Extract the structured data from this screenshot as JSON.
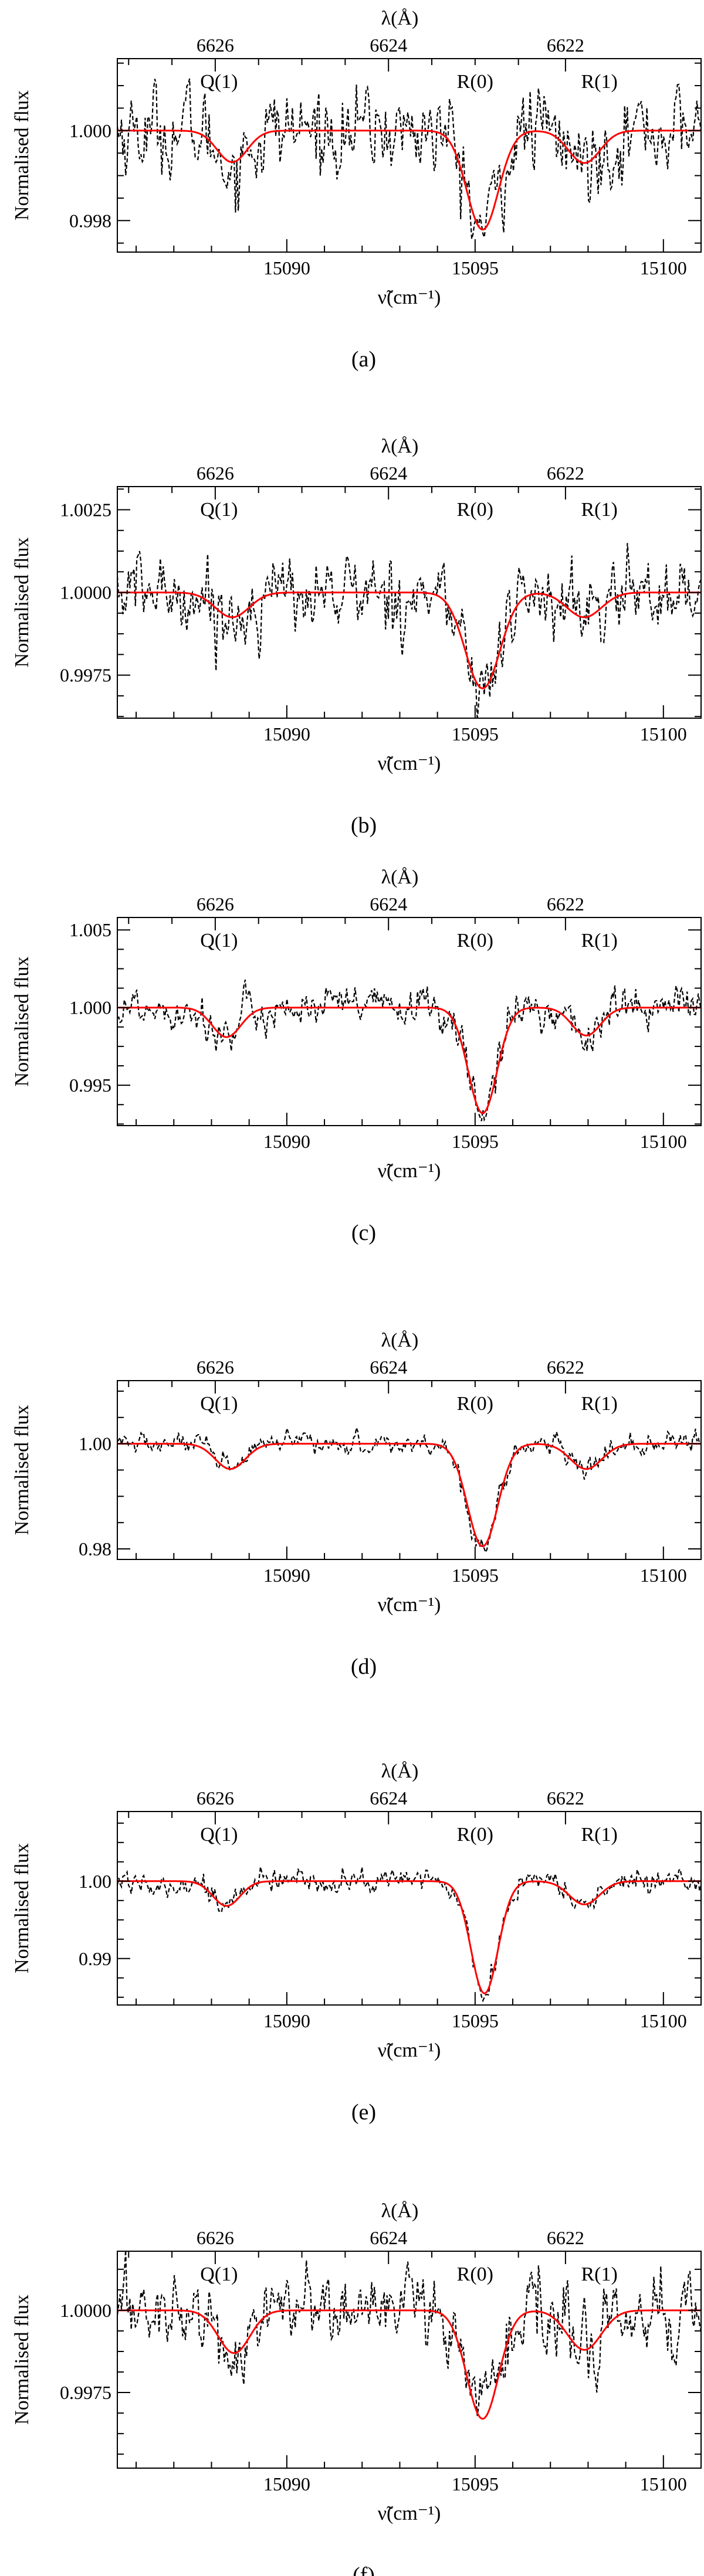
{
  "chart_data": [
    {
      "panel_label": "(a)",
      "type": "line",
      "xlabel": "ν̃(cm⁻¹)",
      "ylabel": "Normalised flux",
      "top_axis_label": "λ(Å)",
      "xlim": [
        15085.5,
        15101.0
      ],
      "ylim": [
        0.9973,
        1.0016
      ],
      "x_ticks": [
        "15090",
        "15095",
        "15100"
      ],
      "y_ticks": [
        "0.998",
        "1.000"
      ],
      "top_ticks": [
        "6626",
        "6624",
        "6622"
      ],
      "annotations": [
        "Q(1)",
        "R(0)",
        "R(1)"
      ],
      "model": {
        "baseline": 1.0,
        "lines": [
          {
            "center": 15088.55,
            "depth": 0.0007,
            "width": 0.4
          },
          {
            "center": 15095.2,
            "depth": 0.0022,
            "width": 0.42
          },
          {
            "center": 15097.9,
            "depth": 0.00072,
            "width": 0.42
          }
        ]
      },
      "observed_noise": 0.00052
    },
    {
      "panel_label": "(b)",
      "type": "line",
      "xlabel": "ν̃(cm⁻¹)",
      "ylabel": "Normalised flux",
      "top_axis_label": "λ(Å)",
      "xlim": [
        15085.5,
        15101.0
      ],
      "ylim": [
        0.9962,
        1.0032
      ],
      "x_ticks": [
        "15090",
        "15095",
        "15100"
      ],
      "y_ticks": [
        "0.9975",
        "1.0000",
        "1.0025"
      ],
      "top_ticks": [
        "6626",
        "6624",
        "6622"
      ],
      "annotations": [
        "Q(1)",
        "R(0)",
        "R(1)"
      ],
      "model": {
        "baseline": 1.0,
        "lines": [
          {
            "center": 15088.55,
            "depth": 0.00075,
            "width": 0.45
          },
          {
            "center": 15095.2,
            "depth": 0.0029,
            "width": 0.46
          },
          {
            "center": 15097.9,
            "depth": 0.00075,
            "width": 0.46
          }
        ]
      },
      "observed_noise": 0.00062
    },
    {
      "panel_label": "(c)",
      "type": "line",
      "xlabel": "ν̃(cm⁻¹)",
      "ylabel": "Normalised flux",
      "top_axis_label": "λ(Å)",
      "xlim": [
        15085.5,
        15101.0
      ],
      "ylim": [
        0.9924,
        1.0058
      ],
      "x_ticks": [
        "15090",
        "15095",
        "15100"
      ],
      "y_ticks": [
        "0.995",
        "1.000",
        "1.005"
      ],
      "top_ticks": [
        "6626",
        "6624",
        "6622"
      ],
      "annotations": [
        "Q(1)",
        "R(0)",
        "R(1)"
      ],
      "model": {
        "baseline": 1.0,
        "lines": [
          {
            "center": 15088.4,
            "depth": 0.0019,
            "width": 0.38
          },
          {
            "center": 15095.2,
            "depth": 0.0068,
            "width": 0.38
          },
          {
            "center": 15097.95,
            "depth": 0.0018,
            "width": 0.38
          }
        ]
      },
      "observed_noise": 0.00075
    },
    {
      "panel_label": "(d)",
      "type": "line",
      "xlabel": "ν̃(cm⁻¹)",
      "ylabel": "Normalised flux",
      "top_axis_label": "λ(Å)",
      "xlim": [
        15085.5,
        15101.0
      ],
      "ylim": [
        0.978,
        1.012
      ],
      "x_ticks": [
        "15090",
        "15095",
        "15100"
      ],
      "y_ticks": [
        "0.98",
        "1.00"
      ],
      "top_ticks": [
        "6626",
        "6624",
        "6622"
      ],
      "annotations": [
        "Q(1)",
        "R(0)",
        "R(1)"
      ],
      "model": {
        "baseline": 1.0,
        "lines": [
          {
            "center": 15088.5,
            "depth": 0.0048,
            "width": 0.4
          },
          {
            "center": 15095.2,
            "depth": 0.0195,
            "width": 0.4
          },
          {
            "center": 15097.95,
            "depth": 0.0048,
            "width": 0.42
          }
        ]
      },
      "observed_noise": 0.0011
    },
    {
      "panel_label": "(e)",
      "type": "line",
      "xlabel": "ν̃(cm⁻¹)",
      "ylabel": "Normalised flux",
      "top_axis_label": "λ(Å)",
      "xlim": [
        15085.5,
        15101.0
      ],
      "ylim": [
        0.984,
        1.009
      ],
      "x_ticks": [
        "15090",
        "15095",
        "15100"
      ],
      "y_ticks": [
        "0.99",
        "1.00"
      ],
      "top_ticks": [
        "6626",
        "6624",
        "6622"
      ],
      "annotations": [
        "Q(1)",
        "R(0)",
        "R(1)"
      ],
      "model": {
        "baseline": 1.0,
        "lines": [
          {
            "center": 15088.4,
            "depth": 0.0032,
            "width": 0.36
          },
          {
            "center": 15095.25,
            "depth": 0.0145,
            "width": 0.36
          },
          {
            "center": 15097.9,
            "depth": 0.003,
            "width": 0.4
          }
        ]
      },
      "observed_noise": 0.00085
    },
    {
      "panel_label": "(f)",
      "type": "line",
      "xlabel": "ν̃(cm⁻¹)",
      "ylabel": "Normalised flux",
      "top_axis_label": "λ(Å)",
      "xlim": [
        15085.5,
        15101.0
      ],
      "ylim": [
        0.9952,
        1.0018
      ],
      "x_ticks": [
        "15090",
        "15095",
        "15100"
      ],
      "y_ticks": [
        "0.9975",
        "1.0000"
      ],
      "top_ticks": [
        "6626",
        "6624",
        "6622"
      ],
      "annotations": [
        "Q(1)",
        "R(0)",
        "R(1)"
      ],
      "model": {
        "baseline": 1.0,
        "lines": [
          {
            "center": 15088.6,
            "depth": 0.0013,
            "width": 0.42
          },
          {
            "center": 15095.2,
            "depth": 0.0033,
            "width": 0.42
          },
          {
            "center": 15097.9,
            "depth": 0.0012,
            "width": 0.45
          }
        ]
      },
      "observed_noise": 0.00062
    }
  ]
}
